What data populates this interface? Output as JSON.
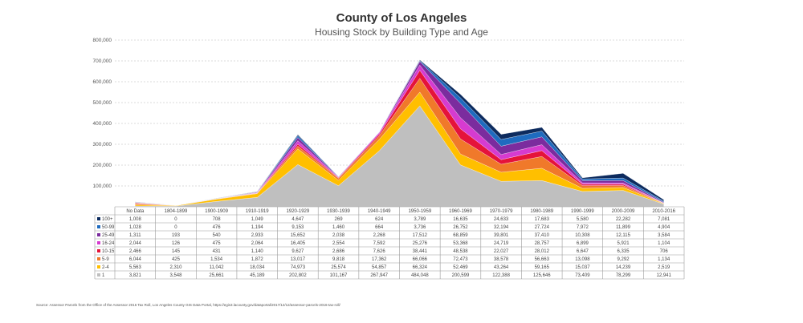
{
  "source": "Source: Assessor Parcels from the Office of the Assessor 2016 Tax Roll, Los Angeles County GIS Data Portal, https://egis3.lacounty.gov/dataportal/2017/12/12/assessor-parcels-2016-tax-roll/",
  "chart_data": {
    "type": "area",
    "stacked": true,
    "title": "County of Los Angeles",
    "subtitle": "Housing Stock by Building Type and Age",
    "xlabel": "",
    "ylabel": "",
    "ylim": [
      0,
      800000
    ],
    "yticks": [
      "800,000",
      "700,000",
      "600,000",
      "500,000",
      "400,000",
      "300,000",
      "200,000",
      "100,000",
      "0"
    ],
    "grid": true,
    "legend": "data-table",
    "categories": [
      "No Data",
      "1804-1899",
      "1900-1909",
      "1910-1919",
      "1920-1929",
      "1930-1939",
      "1940-1949",
      "1950-1959",
      "1960-1969",
      "1970-1979",
      "1980-1989",
      "1990-1999",
      "2000-2009",
      "2010-2016"
    ],
    "series": [
      {
        "name": "100+",
        "color": "#0d2b5e",
        "values": [
          1008,
          0,
          708,
          1049,
          4647,
          269,
          624,
          3789,
          16635,
          24633,
          17683,
          5580,
          22282,
          7081
        ],
        "labels": [
          "1,008",
          "0",
          "708",
          "1,049",
          "4,647",
          "269",
          "624",
          "3,789",
          "16,635",
          "24,633",
          "17,683",
          "5,580",
          "22,282",
          "7,081"
        ]
      },
      {
        "name": "50-99",
        "color": "#1f6bbf",
        "values": [
          1028,
          0,
          476,
          1194,
          9153,
          1460,
          664,
          3736,
          26752,
          32194,
          27724,
          7972,
          11899,
          4904
        ],
        "labels": [
          "1,028",
          "0",
          "476",
          "1,194",
          "9,153",
          "1,460",
          "664",
          "3,736",
          "26,752",
          "32,194",
          "27,724",
          "7,972",
          "11,899",
          "4,904"
        ]
      },
      {
        "name": "25-49",
        "color": "#7b2c9e",
        "values": [
          1311,
          193,
          540,
          2933,
          15652,
          2038,
          2268,
          17512,
          68859,
          39801,
          37410,
          10308,
          12115,
          3584
        ],
        "labels": [
          "1,311",
          "193",
          "540",
          "2,933",
          "15,652",
          "2,038",
          "2,268",
          "17,512",
          "68,859",
          "39,801",
          "37,410",
          "10,308",
          "12,115",
          "3,584"
        ]
      },
      {
        "name": "16-24",
        "color": "#d63bd0",
        "values": [
          2044,
          126,
          475,
          2064,
          16405,
          2554,
          7592,
          25276,
          53368,
          24719,
          28757,
          6899,
          5921,
          1104
        ],
        "labels": [
          "2,044",
          "126",
          "475",
          "2,064",
          "16,405",
          "2,554",
          "7,592",
          "25,276",
          "53,368",
          "24,719",
          "28,757",
          "6,899",
          "5,921",
          "1,104"
        ]
      },
      {
        "name": "10-15",
        "color": "#e5133a",
        "values": [
          2466,
          145,
          431,
          1140,
          9627,
          2686,
          7626,
          38441,
          48538,
          22027,
          28012,
          6647,
          6335,
          706
        ],
        "labels": [
          "2,466",
          "145",
          "431",
          "1,140",
          "9,627",
          "2,686",
          "7,626",
          "38,441",
          "48,538",
          "22,027",
          "28,012",
          "6,647",
          "6,335",
          "706"
        ]
      },
      {
        "name": "5-9",
        "color": "#f0792a",
        "values": [
          6044,
          425,
          1534,
          1872,
          13017,
          9818,
          17362,
          66066,
          72473,
          38578,
          56663,
          13098,
          9292,
          1134
        ],
        "labels": [
          "6,044",
          "425",
          "1,534",
          "1,872",
          "13,017",
          "9,818",
          "17,362",
          "66,066",
          "72,473",
          "38,578",
          "56,663",
          "13,098",
          "9,292",
          "1,134"
        ]
      },
      {
        "name": "2-4",
        "color": "#ffbf00",
        "values": [
          5563,
          2310,
          11042,
          18034,
          74973,
          25574,
          54857,
          66324,
          52469,
          43264,
          59165,
          15037,
          14239,
          2519
        ],
        "labels": [
          "5,563",
          "2,310",
          "11,042",
          "18,034",
          "74,973",
          "25,574",
          "54,857",
          "66,324",
          "52,469",
          "43,264",
          "59,165",
          "15,037",
          "14,239",
          "2,519"
        ]
      },
      {
        "name": "1",
        "color": "#bfbfbf",
        "values": [
          3821,
          3548,
          25661,
          45189,
          202802,
          101167,
          267947,
          484048,
          200599,
          122388,
          125646,
          73409,
          78299,
          12941
        ],
        "labels": [
          "3,821",
          "3,548",
          "25,661",
          "45,189",
          "202,802",
          "101,167",
          "267,947",
          "484,048",
          "200,599",
          "122,388",
          "125,646",
          "73,409",
          "78,299",
          "12,941"
        ]
      }
    ]
  }
}
